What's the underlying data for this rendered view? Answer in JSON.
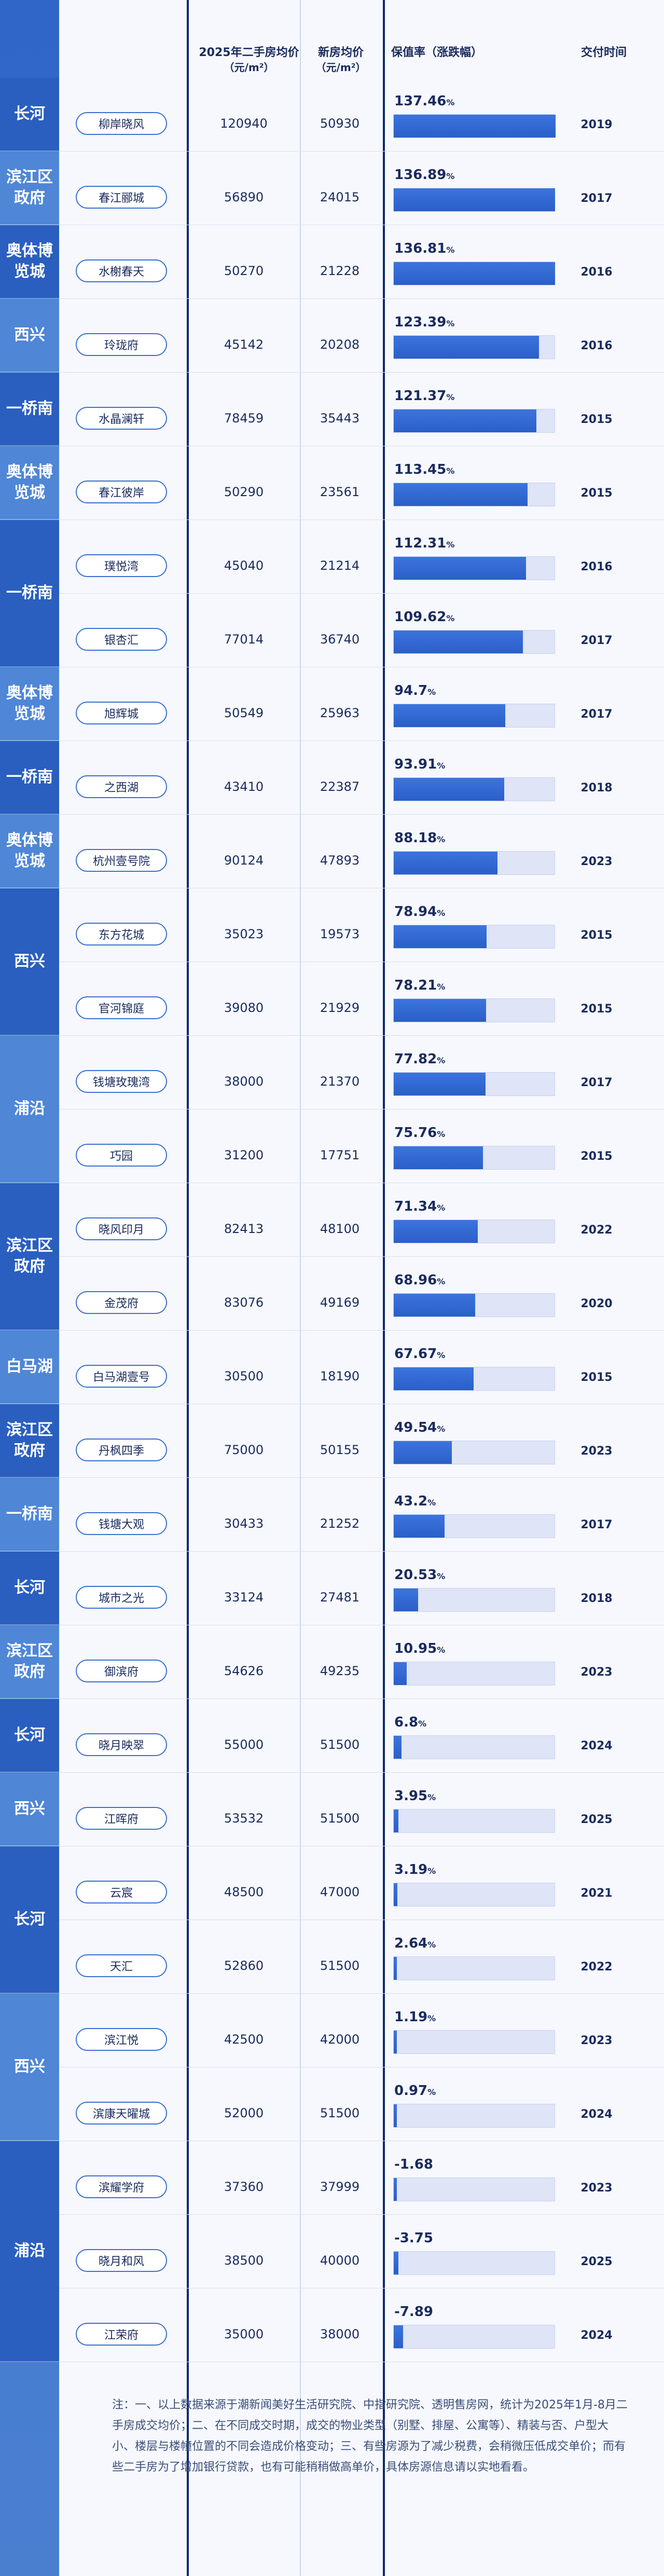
{
  "headers": {
    "price2025_line1": "2025年二手房均价",
    "price2025_line2": "（元/m²）",
    "newprice_line1": "新房均价",
    "newprice_line2": "（元/m²）",
    "rate": "保值率（涨跌幅）",
    "year": "交付时间"
  },
  "groups": [
    {
      "district": "长河",
      "rows": [
        0
      ]
    },
    {
      "district": "滨江区政府",
      "rows": [
        1
      ]
    },
    {
      "district": "奥体博览城",
      "rows": [
        2
      ]
    },
    {
      "district": "西兴",
      "rows": [
        3
      ]
    },
    {
      "district": "一桥南",
      "rows": [
        4
      ]
    },
    {
      "district": "奥体博览城",
      "rows": [
        5
      ]
    },
    {
      "district": "一桥南",
      "rows": [
        6,
        7
      ]
    },
    {
      "district": "奥体博览城",
      "rows": [
        8
      ]
    },
    {
      "district": "一桥南",
      "rows": [
        9
      ]
    },
    {
      "district": "奥体博览城",
      "rows": [
        10
      ]
    },
    {
      "district": "西兴",
      "rows": [
        11,
        12
      ]
    },
    {
      "district": "浦沿",
      "rows": [
        13,
        14
      ]
    },
    {
      "district": "滨江区政府",
      "rows": [
        15,
        16
      ]
    },
    {
      "district": "白马湖",
      "rows": [
        17
      ]
    },
    {
      "district": "滨江区政府",
      "rows": [
        18
      ]
    },
    {
      "district": "一桥南",
      "rows": [
        19
      ]
    },
    {
      "district": "长河",
      "rows": [
        20
      ]
    },
    {
      "district": "滨江区政府",
      "rows": [
        21
      ]
    },
    {
      "district": "长河",
      "rows": [
        22
      ]
    },
    {
      "district": "西兴",
      "rows": [
        23
      ]
    },
    {
      "district": "长河",
      "rows": [
        24,
        25
      ]
    },
    {
      "district": "西兴",
      "rows": [
        26,
        27
      ]
    },
    {
      "district": "浦沿",
      "rows": [
        28,
        29,
        30
      ]
    }
  ],
  "chart_data": {
    "type": "bar",
    "title": "",
    "xlabel": "",
    "ylabel": "保值率（涨跌幅）",
    "ylim": [
      -10,
      140
    ],
    "unit": "%",
    "rows": [
      {
        "name": "柳岸晓风",
        "price2025": "120940",
        "newprice": "50930",
        "rate": 137.46,
        "rate_label": "137.46",
        "year": "2019"
      },
      {
        "name": "春江郦城",
        "price2025": "56890",
        "newprice": "24015",
        "rate": 136.89,
        "rate_label": "136.89",
        "year": "2017"
      },
      {
        "name": "水榭春天",
        "price2025": "50270",
        "newprice": "21228",
        "rate": 136.81,
        "rate_label": "136.81",
        "year": "2016"
      },
      {
        "name": "玲珑府",
        "price2025": "45142",
        "newprice": "20208",
        "rate": 123.39,
        "rate_label": "123.39",
        "year": "2016"
      },
      {
        "name": "水晶澜轩",
        "price2025": "78459",
        "newprice": "35443",
        "rate": 121.37,
        "rate_label": "121.37",
        "year": "2015"
      },
      {
        "name": "春江彼岸",
        "price2025": "50290",
        "newprice": "23561",
        "rate": 113.45,
        "rate_label": "113.45",
        "year": "2015"
      },
      {
        "name": "璞悦湾",
        "price2025": "45040",
        "newprice": "21214",
        "rate": 112.31,
        "rate_label": "112.31",
        "year": "2016"
      },
      {
        "name": "银杏汇",
        "price2025": "77014",
        "newprice": "36740",
        "rate": 109.62,
        "rate_label": "109.62",
        "year": "2017"
      },
      {
        "name": "旭辉城",
        "price2025": "50549",
        "newprice": "25963",
        "rate": 94.7,
        "rate_label": "94.7",
        "year": "2017"
      },
      {
        "name": "之西湖",
        "price2025": "43410",
        "newprice": "22387",
        "rate": 93.91,
        "rate_label": "93.91",
        "year": "2018"
      },
      {
        "name": "杭州壹号院",
        "price2025": "90124",
        "newprice": "47893",
        "rate": 88.18,
        "rate_label": "88.18",
        "year": "2023"
      },
      {
        "name": "东方花城",
        "price2025": "35023",
        "newprice": "19573",
        "rate": 78.94,
        "rate_label": "78.94",
        "year": "2015"
      },
      {
        "name": "官河锦庭",
        "price2025": "39080",
        "newprice": "21929",
        "rate": 78.21,
        "rate_label": "78.21",
        "year": "2015"
      },
      {
        "name": "钱塘玫瑰湾",
        "price2025": "38000",
        "newprice": "21370",
        "rate": 77.82,
        "rate_label": "77.82",
        "year": "2017"
      },
      {
        "name": "巧园",
        "price2025": "31200",
        "newprice": "17751",
        "rate": 75.76,
        "rate_label": "75.76",
        "year": "2015"
      },
      {
        "name": "晓风印月",
        "price2025": "82413",
        "newprice": "48100",
        "rate": 71.34,
        "rate_label": "71.34",
        "year": "2022"
      },
      {
        "name": "金茂府",
        "price2025": "83076",
        "newprice": "49169",
        "rate": 68.96,
        "rate_label": "68.96",
        "year": "2020"
      },
      {
        "name": "白马湖壹号",
        "price2025": "30500",
        "newprice": "18190",
        "rate": 67.67,
        "rate_label": "67.67",
        "year": "2015"
      },
      {
        "name": "丹枫四季",
        "price2025": "75000",
        "newprice": "50155",
        "rate": 49.54,
        "rate_label": "49.54",
        "year": "2023"
      },
      {
        "name": "钱塘大观",
        "price2025": "30433",
        "newprice": "21252",
        "rate": 43.2,
        "rate_label": "43.2",
        "year": "2017"
      },
      {
        "name": "城市之光",
        "price2025": "33124",
        "newprice": "27481",
        "rate": 20.53,
        "rate_label": "20.53",
        "year": "2018"
      },
      {
        "name": "御滨府",
        "price2025": "54626",
        "newprice": "49235",
        "rate": 10.95,
        "rate_label": "10.95",
        "year": "2023"
      },
      {
        "name": "晓月映翠",
        "price2025": "55000",
        "newprice": "51500",
        "rate": 6.8,
        "rate_label": "6.8",
        "year": "2024"
      },
      {
        "name": "江晖府",
        "price2025": "53532",
        "newprice": "51500",
        "rate": 3.95,
        "rate_label": "3.95",
        "year": "2025"
      },
      {
        "name": "云宸",
        "price2025": "48500",
        "newprice": "47000",
        "rate": 3.19,
        "rate_label": "3.19",
        "year": "2021"
      },
      {
        "name": "天汇",
        "price2025": "52860",
        "newprice": "51500",
        "rate": 2.64,
        "rate_label": "2.64",
        "year": "2022"
      },
      {
        "name": "滨江悦",
        "price2025": "42500",
        "newprice": "42000",
        "rate": 1.19,
        "rate_label": "1.19",
        "year": "2023"
      },
      {
        "name": "滨康天曜城",
        "price2025": "52000",
        "newprice": "51500",
        "rate": 0.97,
        "rate_label": "0.97",
        "year": "2024"
      },
      {
        "name": "滨耀学府",
        "price2025": "37360",
        "newprice": "37999",
        "rate": -1.68,
        "rate_label": "-1.68",
        "year": "2023"
      },
      {
        "name": "晓月和风",
        "price2025": "38500",
        "newprice": "40000",
        "rate": -3.75,
        "rate_label": "-3.75",
        "year": "2025"
      },
      {
        "name": "江荣府",
        "price2025": "35000",
        "newprice": "38000",
        "rate": -7.89,
        "rate_label": "-7.89",
        "year": "2024"
      }
    ]
  },
  "note": "注：一、以上数据来源于潮新闻美好生活研究院、中指研究院、透明售房网，统计为2025年1月-8月二手房成交均价；二、在不同成交时期，成交的物业类型（别墅、排屋、公寓等）、精装与否、户型大小、楼层与楼幢位置的不同会造成价格变动；三、有些房源为了减少税费，会稍微压低成交单价；而有些二手房为了增加银行贷款，也有可能稍稍做高单价，具体房源信息请以实地看看。",
  "colors": {
    "accent": "#2a5fc7",
    "track": "#dfe4f6",
    "strip_dark": "#2a5fbf",
    "strip_light": "#4f86d6",
    "text": "#1a2b5e"
  }
}
